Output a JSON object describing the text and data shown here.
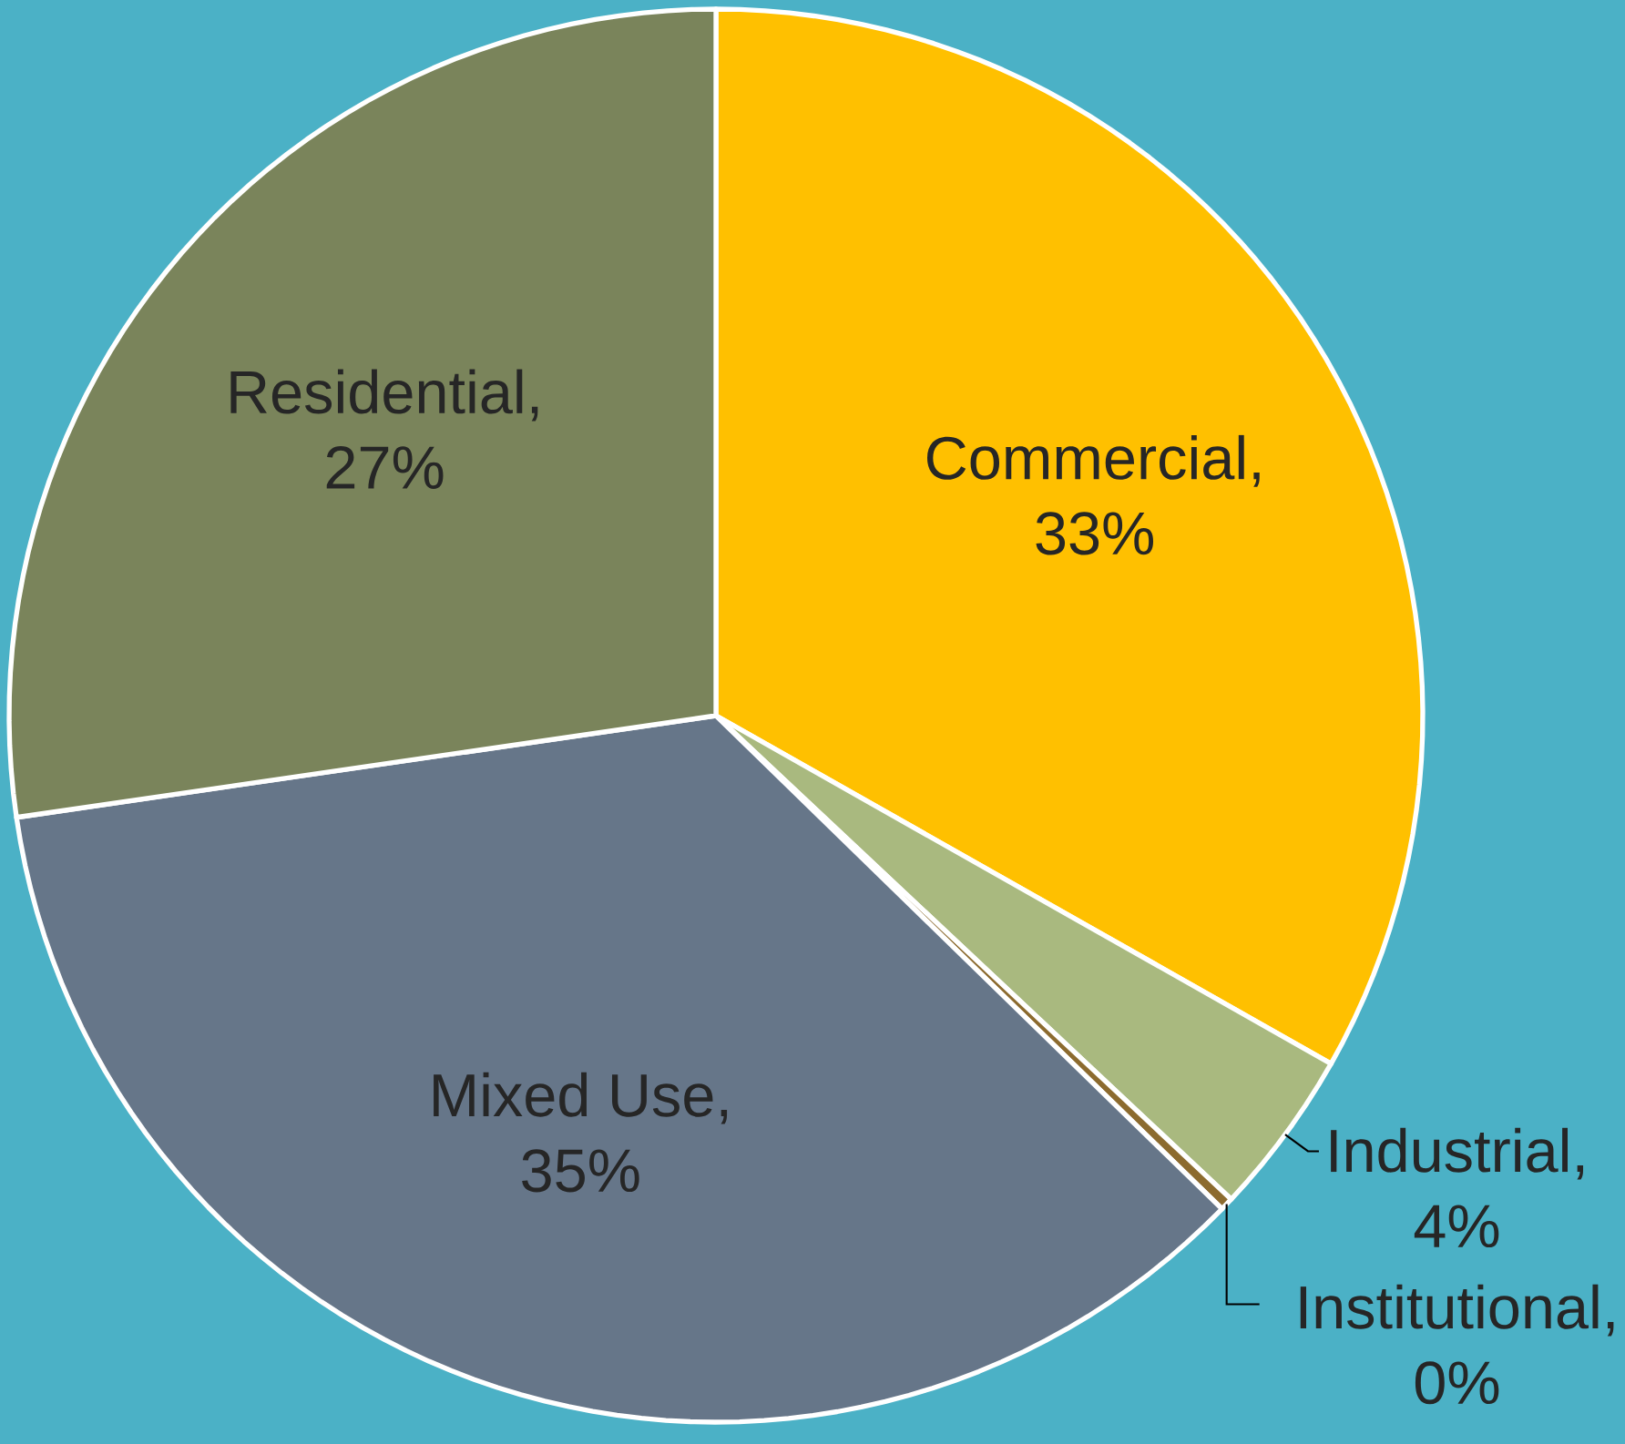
{
  "chart_data": {
    "type": "pie",
    "categories": [
      "Commercial",
      "Industrial",
      "Institutional",
      "Mixed Use",
      "Residential"
    ],
    "values": [
      33.2,
      3.8,
      0.3,
      35.4,
      27.3
    ],
    "value_labels": [
      ", 33%",
      ", 4%",
      ", 0%",
      ", 35%",
      ", 27%"
    ],
    "colors": [
      "#ffc000",
      "#a9b97f",
      "#8c6b2f",
      "#667689",
      "#7a845b"
    ]
  }
}
